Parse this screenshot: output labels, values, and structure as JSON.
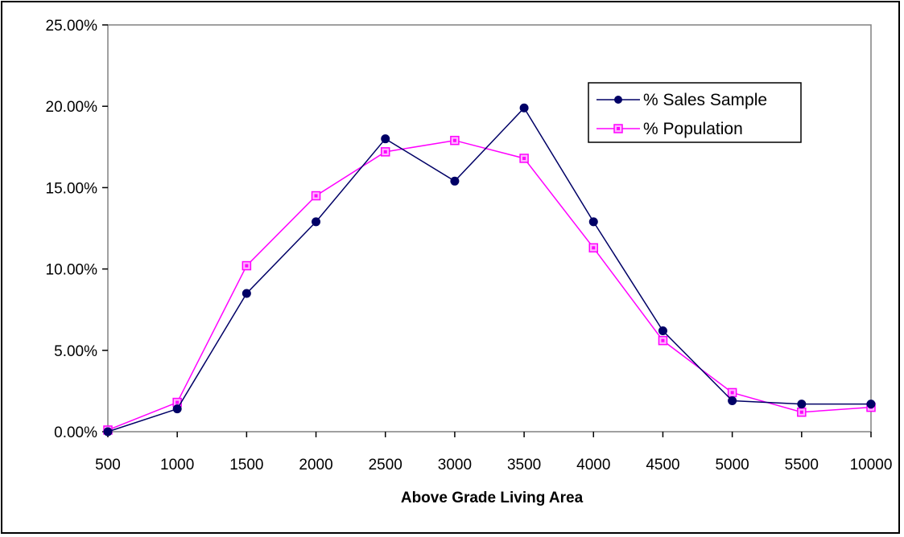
{
  "chart_data": {
    "type": "line",
    "title": "",
    "xlabel": "Above Grade Living Area",
    "ylabel": "",
    "categories": [
      "500",
      "1000",
      "1500",
      "2000",
      "2500",
      "3000",
      "3500",
      "4000",
      "4500",
      "5000",
      "5500",
      "10000"
    ],
    "yticks": [
      "0.00%",
      "5.00%",
      "10.00%",
      "15.00%",
      "20.00%",
      "25.00%"
    ],
    "ylim": [
      0,
      25
    ],
    "grid": false,
    "legend_position": "top-right",
    "series": [
      {
        "name": "% Sales Sample",
        "color": "#000066",
        "marker": "circle",
        "values": [
          0.0,
          1.4,
          8.5,
          12.9,
          18.0,
          15.4,
          19.9,
          12.9,
          6.2,
          1.9,
          1.7,
          1.7
        ]
      },
      {
        "name": "% Population",
        "color": "#ff00ff",
        "marker": "square",
        "values": [
          0.1,
          1.8,
          10.2,
          14.5,
          17.2,
          17.9,
          16.8,
          11.3,
          5.6,
          2.4,
          1.2,
          1.5
        ]
      }
    ]
  }
}
